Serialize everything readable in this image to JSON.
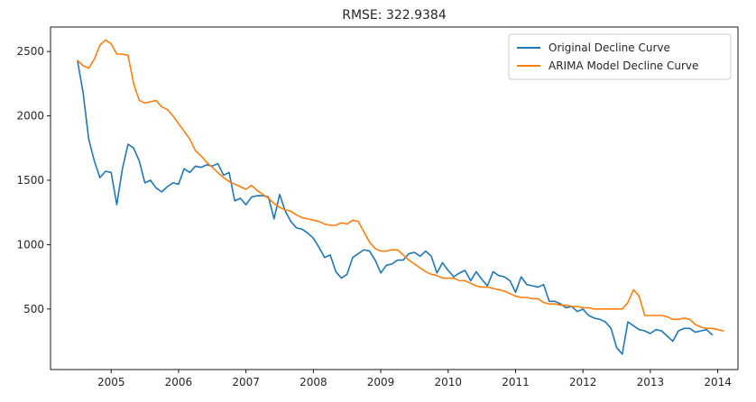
{
  "chart_data": {
    "type": "line",
    "title": "RMSE: 322.9384",
    "xlabel": "",
    "ylabel": "",
    "x_start": "2004-07",
    "x_step": "1 month",
    "xlim": [
      2004.1,
      2014.3
    ],
    "ylim": [
      30,
      2690
    ],
    "x_ticks": [
      2005,
      2006,
      2007,
      2008,
      2009,
      2010,
      2011,
      2012,
      2013,
      2014
    ],
    "x_tick_labels": [
      "2005",
      "2006",
      "2007",
      "2008",
      "2009",
      "2010",
      "2011",
      "2012",
      "2013",
      "2014"
    ],
    "y_ticks": [
      500,
      1000,
      1500,
      2000,
      2500
    ],
    "y_tick_labels": [
      "500",
      "1000",
      "1500",
      "2000",
      "2500"
    ],
    "grid": false,
    "legend_position": "top-right",
    "series": [
      {
        "name": "Original Decline Curve",
        "color": "#1f77b4",
        "values": [
          2430,
          2180,
          1820,
          1650,
          1520,
          1570,
          1560,
          1310,
          1590,
          1780,
          1750,
          1650,
          1480,
          1500,
          1440,
          1410,
          1450,
          1480,
          1470,
          1590,
          1560,
          1610,
          1600,
          1620,
          1610,
          1630,
          1540,
          1560,
          1340,
          1360,
          1310,
          1370,
          1380,
          1380,
          1370,
          1200,
          1390,
          1260,
          1180,
          1130,
          1120,
          1090,
          1050,
          980,
          900,
          920,
          790,
          740,
          770,
          900,
          930,
          960,
          950,
          880,
          780,
          840,
          850,
          880,
          880,
          930,
          940,
          910,
          950,
          910,
          780,
          860,
          800,
          750,
          780,
          800,
          720,
          790,
          730,
          680,
          790,
          760,
          750,
          720,
          630,
          750,
          690,
          680,
          670,
          690,
          560,
          560,
          540,
          510,
          520,
          480,
          500,
          450,
          430,
          420,
          400,
          350,
          200,
          150,
          400,
          370,
          340,
          330,
          310,
          340,
          330,
          290,
          250,
          330,
          350,
          350,
          320,
          330,
          340,
          300
        ]
      },
      {
        "name": "ARIMA Model Decline Curve",
        "color": "#ff7f0e",
        "values": [
          2430,
          2390,
          2370,
          2440,
          2550,
          2590,
          2560,
          2480,
          2480,
          2470,
          2250,
          2120,
          2100,
          2110,
          2120,
          2070,
          2050,
          2000,
          1940,
          1880,
          1820,
          1730,
          1690,
          1640,
          1600,
          1560,
          1520,
          1490,
          1470,
          1450,
          1430,
          1460,
          1420,
          1390,
          1360,
          1320,
          1290,
          1270,
          1260,
          1230,
          1210,
          1200,
          1190,
          1180,
          1160,
          1150,
          1150,
          1170,
          1160,
          1190,
          1180,
          1100,
          1020,
          970,
          950,
          950,
          960,
          960,
          920,
          880,
          850,
          820,
          790,
          770,
          760,
          740,
          740,
          740,
          720,
          720,
          700,
          680,
          670,
          670,
          660,
          650,
          640,
          620,
          600,
          590,
          590,
          580,
          580,
          550,
          540,
          540,
          530,
          530,
          520,
          520,
          510,
          510,
          500,
          500,
          500,
          500,
          500,
          500,
          550,
          650,
          600,
          450,
          450,
          450,
          450,
          440,
          420,
          420,
          430,
          420,
          380,
          360,
          350,
          350,
          340,
          330
        ]
      }
    ]
  }
}
